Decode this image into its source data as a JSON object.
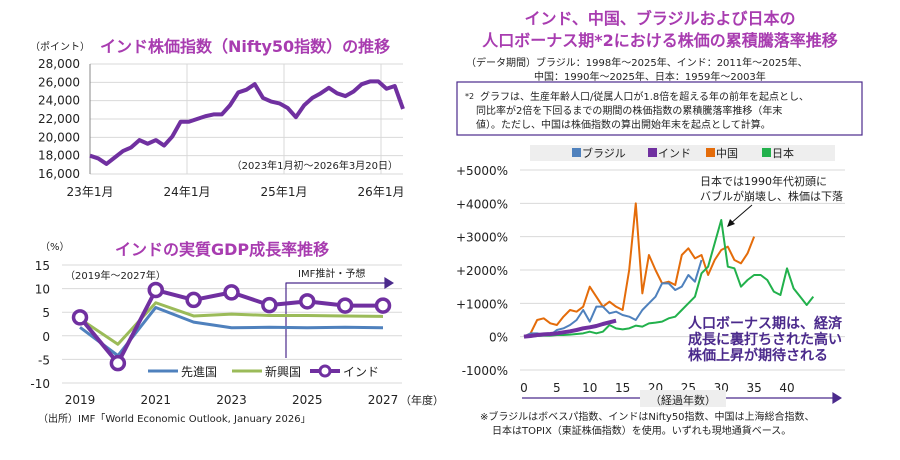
{
  "colors": {
    "title": "#a83cb0",
    "nifty": "#7030a0",
    "advanced": "#4f81bd",
    "emerging": "#9bbb59",
    "india": "#7030a0",
    "brazil": "#4f81bd",
    "china": "#e46c0a",
    "japan": "#22b14c",
    "arrow": "#4b2a8c",
    "grid": "#d9d9d9"
  },
  "chart_data": [
    {
      "type": "line",
      "title": "インド株価指数（Nifty50指数）の推移",
      "ylabel": "（ポイント）",
      "note": "（2023年1月初～2026年3月20日）",
      "ylim": [
        16000,
        28000
      ],
      "yticks": [
        "28,000",
        "26,000",
        "24,000",
        "22,000",
        "20,000",
        "18,000",
        "16,000"
      ],
      "xticks": [
        "23年1月",
        "24年1月",
        "25年1月",
        "26年1月"
      ],
      "grid": true,
      "x": [
        "2023-01",
        "2023-02",
        "2023-03",
        "2023-04",
        "2023-05",
        "2023-06",
        "2023-07",
        "2023-08",
        "2023-09",
        "2023-10",
        "2023-11",
        "2023-12",
        "2024-01",
        "2024-02",
        "2024-03",
        "2024-04",
        "2024-05",
        "2024-06",
        "2024-07",
        "2024-08",
        "2024-09",
        "2024-10",
        "2024-11",
        "2024-12",
        "2025-01",
        "2025-02",
        "2025-03",
        "2025-04",
        "2025-05",
        "2025-06",
        "2025-07",
        "2025-08",
        "2025-09",
        "2025-10",
        "2025-11",
        "2025-12",
        "2026-01",
        "2026-02",
        "2026-03"
      ],
      "series": [
        {
          "values": [
            18000,
            17700,
            17100,
            17800,
            18500,
            18900,
            19700,
            19300,
            19700,
            19100,
            20100,
            21700,
            21700,
            22000,
            22300,
            22500,
            22500,
            23500,
            24900,
            25200,
            25800,
            24300,
            23900,
            23700,
            23200,
            22200,
            23500,
            24300,
            24800,
            25400,
            24800,
            24500,
            25000,
            25800,
            26100,
            26100,
            25300,
            25600,
            23100
          ]
        }
      ]
    },
    {
      "type": "line",
      "title": "インドの実質GDP成長率推移",
      "ylabel": "（%）",
      "subtitle": "（2019年～2027年）",
      "xunit": "（年度）",
      "forecast_label": "IMF推計・予想",
      "ylim": [
        -10,
        15
      ],
      "yticks": [
        "15",
        "10",
        "5",
        "0",
        "-5",
        "-10"
      ],
      "xticks": [
        "2019",
        "2021",
        "2023",
        "2025",
        "2027"
      ],
      "x": [
        2019,
        2020,
        2021,
        2022,
        2023,
        2024,
        2025,
        2026,
        2027
      ],
      "grid": true,
      "legend": "bottom",
      "series": [
        {
          "name": "先進国",
          "values": [
            1.8,
            -4.2,
            6.0,
            2.9,
            1.7,
            1.8,
            1.7,
            1.8,
            1.7
          ]
        },
        {
          "name": "新興国",
          "values": [
            3.6,
            -1.8,
            7.0,
            4.2,
            4.6,
            4.3,
            4.3,
            4.2,
            4.1
          ]
        },
        {
          "name": "インド",
          "values": [
            3.9,
            -5.8,
            9.7,
            7.6,
            9.2,
            6.5,
            7.3,
            6.4,
            6.4
          ]
        }
      ],
      "source": "（出所）IMF「World Economic Outlook, January 2026」"
    },
    {
      "type": "line",
      "title": [
        "インド、中国、ブラジルおよび日本の",
        "人口ボーナス期*2における株価の累積騰落率推移"
      ],
      "period": [
        "（データ期間）ブラジル：1998年～2025年、インド：2011年～2025年、",
        "中国：1990年～2025年、日本：1959年～2003年"
      ],
      "footnote_box": {
        "mark": "*2",
        "lines": [
          "グラフは、生産年齢人口/従属人口が1.8倍を超える年の前年を起点とし、",
          "同比率が2倍を下回るまでの期間の株価指数の累積騰落率推移（年末",
          "値）。ただし、中国は株価指数の算出開始年末を起点として計算。"
        ]
      },
      "ylim": [
        -1000,
        5000
      ],
      "yticks": [
        "+5000%",
        "+4000%",
        "+3000%",
        "+2000%",
        "+1000%",
        "0%",
        "-1000%"
      ],
      "xticks": [
        "0",
        "5",
        "10",
        "15",
        "20",
        "25",
        "30",
        "35",
        "40"
      ],
      "xlabel": "（経過年数）",
      "grid": true,
      "legend": "top",
      "series": [
        {
          "name": "ブラジル",
          "values": [
            0,
            100,
            100,
            50,
            50,
            200,
            250,
            350,
            500,
            800,
            450,
            900,
            900,
            700,
            750,
            650,
            600,
            500,
            800,
            1000,
            1200,
            1600,
            1600,
            1400,
            1500,
            1850,
            1650,
            2300
          ]
        },
        {
          "name": "インド",
          "values": [
            0,
            20,
            50,
            70,
            80,
            100,
            130,
            160,
            200,
            250,
            280,
            320,
            380,
            430,
            480
          ]
        },
        {
          "name": "中国",
          "values": [
            0,
            100,
            500,
            550,
            400,
            350,
            600,
            800,
            750,
            900,
            1500,
            1200,
            900,
            1050,
            900,
            800,
            2000,
            4000,
            1300,
            2450,
            2000,
            1600,
            1650,
            1550,
            2450,
            2650,
            2350,
            2450,
            1850,
            2300,
            2600,
            2700,
            2300,
            2200,
            2500,
            3000
          ]
        },
        {
          "name": "日本",
          "values": [
            0,
            0,
            20,
            30,
            30,
            50,
            50,
            60,
            80,
            100,
            150,
            100,
            150,
            350,
            250,
            220,
            250,
            330,
            300,
            400,
            420,
            450,
            550,
            600,
            800,
            1000,
            1200,
            1900,
            2100,
            2800,
            3500,
            2100,
            2050,
            1500,
            1700,
            1850,
            1850,
            1700,
            1350,
            1250,
            2050,
            1450,
            1200,
            950,
            1200
          ]
        }
      ],
      "annotation": [
        "日本では1990年代初頭に",
        "バブルが崩壊し、株価は下落"
      ],
      "callout": [
        "人口ボーナス期は、経済",
        "成長に裏打ちされた高い",
        "株価上昇が期待される"
      ],
      "note": [
        "※ブラジルはボベスパ指数、インドはNifty50指数、中国は上海総合指数、",
        "日本はTOPIX（東証株価指数）を使用。いずれも現地通貨ベース。"
      ]
    }
  ]
}
